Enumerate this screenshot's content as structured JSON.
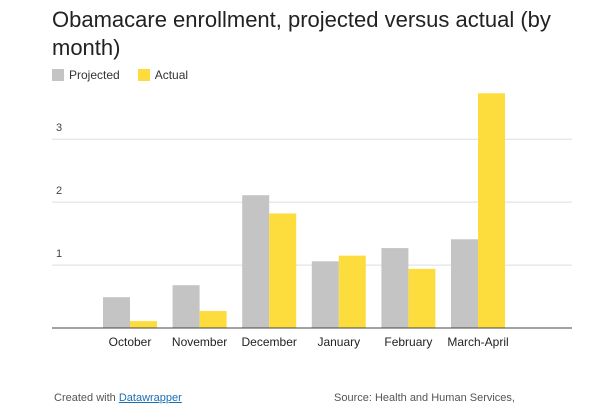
{
  "title": "Obamacare enrollment, projected versus actual (by month)",
  "footer": {
    "created_prefix": "Created with",
    "created_link": "Datawrapper",
    "source": "Source: Health and Human Services,"
  },
  "colors": {
    "projected": "#c4c4c4",
    "actual": "#fddd3e",
    "grid": "#dddddd",
    "axis": "#444444"
  },
  "chart_data": {
    "type": "bar",
    "title": "Obamacare enrollment, projected versus actual (by month)",
    "categories": [
      "October",
      "November",
      "December",
      "January",
      "February",
      "March-April"
    ],
    "series": [
      {
        "name": "Projected",
        "values": [
          0.49,
          0.68,
          2.11,
          1.06,
          1.27,
          1.41
        ]
      },
      {
        "name": "Actual",
        "values": [
          0.11,
          0.27,
          1.82,
          1.15,
          0.94,
          3.73
        ]
      }
    ],
    "yticks": [
      1,
      2,
      3
    ],
    "ylim": [
      0,
      3.75
    ],
    "grid": true,
    "legend": "top-left",
    "xlabel": "",
    "ylabel": ""
  }
}
